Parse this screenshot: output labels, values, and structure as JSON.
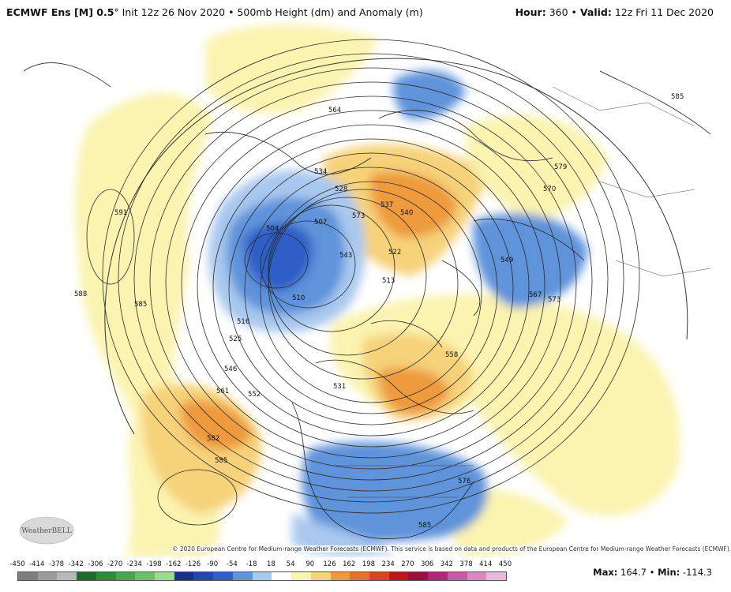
{
  "header": {
    "model": "ECMWF Ens [M] 0.5",
    "degree": "°",
    "init": " Init 12z 26 Nov 2020 • 500mb Height (dm) and Anomaly (m)",
    "hour_label": "Hour:",
    "hour": "360",
    "sep": " • ",
    "valid_label": "Valid:",
    "valid": "12z Fri 11 Dec 2020"
  },
  "map": {
    "contour_labels": [
      "585",
      "564",
      "534",
      "528",
      "504",
      "507",
      "537",
      "540",
      "573",
      "579",
      "570",
      "591",
      "588",
      "585",
      "516",
      "510",
      "525",
      "546",
      "561",
      "552",
      "531",
      "543",
      "522",
      "513",
      "558",
      "567",
      "549",
      "573",
      "582",
      "585",
      "576",
      "585"
    ],
    "colors": {
      "ocean": "#ffffff",
      "land_line": "#222222",
      "contour": "#2a2a2a",
      "pos_light": "#fbf3b0",
      "pos_mid": "#f6d27a",
      "pos_strong": "#ee9a3c",
      "pos_max": "#e8702a",
      "neg_light": "#a9c8ee",
      "neg_mid": "#5f93da",
      "neg_strong": "#2f5fc6",
      "neg_max": "#1c3f9e"
    }
  },
  "credit": "© 2020 European Centre for Medium-range Weather Forecasts (ECMWF). This service is based on data and products of the European Centre for Medium-range Weather Forecasts (ECMWF).",
  "logo_text": "WeatherBELL",
  "scale": {
    "ticks": [
      "-450",
      "-414",
      "-378",
      "-342",
      "-306",
      "-270",
      "-234",
      "-198",
      "-162",
      "-126",
      "-90",
      "-54",
      "-18",
      "18",
      "54",
      "90",
      "126",
      "162",
      "198",
      "234",
      "270",
      "306",
      "342",
      "378",
      "414",
      "450"
    ],
    "colors": [
      "#7e7e7e",
      "#9b9b9b",
      "#b8b8b8",
      "#1e6b2c",
      "#2e8b3c",
      "#47a64e",
      "#6cc06a",
      "#9ddc8c",
      "#1a2f8c",
      "#2346b0",
      "#2f5fc6",
      "#5f93da",
      "#a9c8ee",
      "#ffffff",
      "#fbf3b0",
      "#f6d27a",
      "#ee9a3c",
      "#e8702a",
      "#d8441f",
      "#c01818",
      "#a00c3c",
      "#b0287a",
      "#c85aa8",
      "#d889c4",
      "#e8b8dc"
    ]
  },
  "stats": {
    "max_label": "Max:",
    "max": "164.7",
    "sep": " • ",
    "min_label": "Min:",
    "min": "-114.3"
  }
}
